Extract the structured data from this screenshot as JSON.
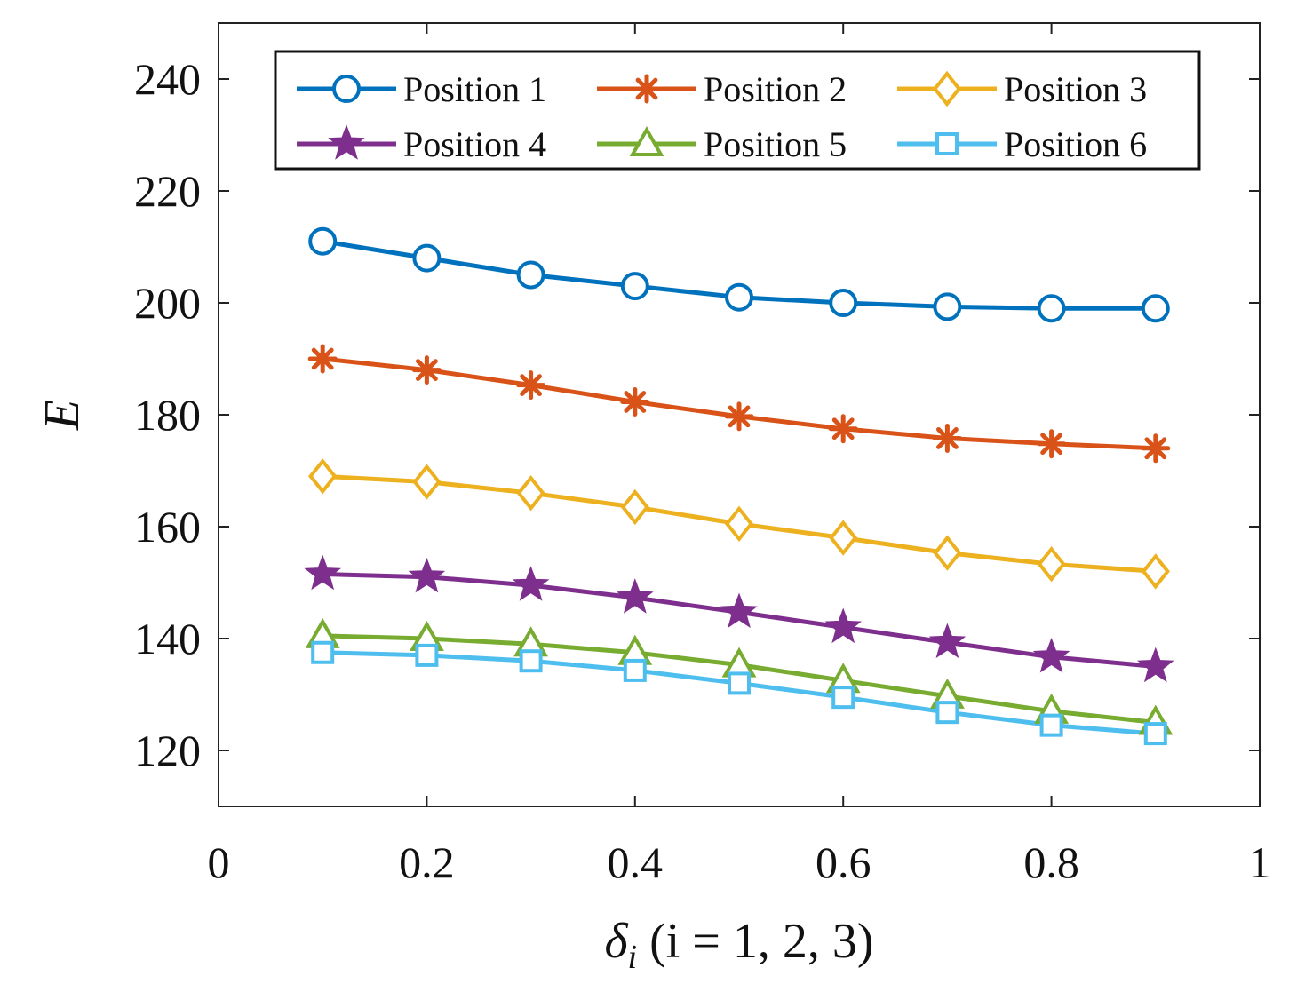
{
  "chart_data": {
    "type": "line",
    "title": "",
    "xlabel": "δ_i (i = 1, 2, 3)",
    "xlabel_main": "δ",
    "xlabel_sub": "i",
    "xlabel_rest": " (i = 1, 2, 3)",
    "ylabel": "E",
    "xlim": [
      0,
      1
    ],
    "ylim": [
      110,
      250
    ],
    "xticks": [
      0,
      0.2,
      0.4,
      0.6,
      0.8,
      1
    ],
    "xtick_labels": [
      "0",
      "0.2",
      "0.4",
      "0.6",
      "0.8",
      "1"
    ],
    "yticks": [
      120,
      140,
      160,
      180,
      200,
      220,
      240
    ],
    "ytick_labels": [
      "120",
      "140",
      "160",
      "180",
      "200",
      "220",
      "240"
    ],
    "grid": false,
    "legend_position": "top-right",
    "x": [
      0.1,
      0.2,
      0.3,
      0.4,
      0.5,
      0.6,
      0.7,
      0.8,
      0.9
    ],
    "series": [
      {
        "name": "Position 1",
        "color": "#0072BD",
        "marker": "circle",
        "values": [
          211,
          208,
          205,
          203,
          201,
          200,
          199.3,
          199,
          199
        ]
      },
      {
        "name": "Position 2",
        "color": "#D95319",
        "marker": "asterisk",
        "values": [
          190,
          188,
          185.3,
          182.3,
          179.7,
          177.5,
          175.8,
          174.8,
          174
        ]
      },
      {
        "name": "Position 3",
        "color": "#EDB120",
        "marker": "diamond",
        "values": [
          169,
          168,
          166,
          163.5,
          160.5,
          158,
          155.3,
          153.3,
          152
        ]
      },
      {
        "name": "Position 4",
        "color": "#7E2F8E",
        "marker": "star",
        "values": [
          151.5,
          151,
          149.5,
          147.3,
          144.7,
          142,
          139.3,
          136.7,
          135
        ]
      },
      {
        "name": "Position 5",
        "color": "#77AC30",
        "marker": "triangle",
        "values": [
          140.5,
          140,
          139,
          137.5,
          135.3,
          132.5,
          129.7,
          127,
          125
        ]
      },
      {
        "name": "Position 6",
        "color": "#4DBEEE",
        "marker": "square",
        "values": [
          137.5,
          137,
          136,
          134.3,
          132,
          129.5,
          126.8,
          124.5,
          123
        ]
      }
    ]
  }
}
